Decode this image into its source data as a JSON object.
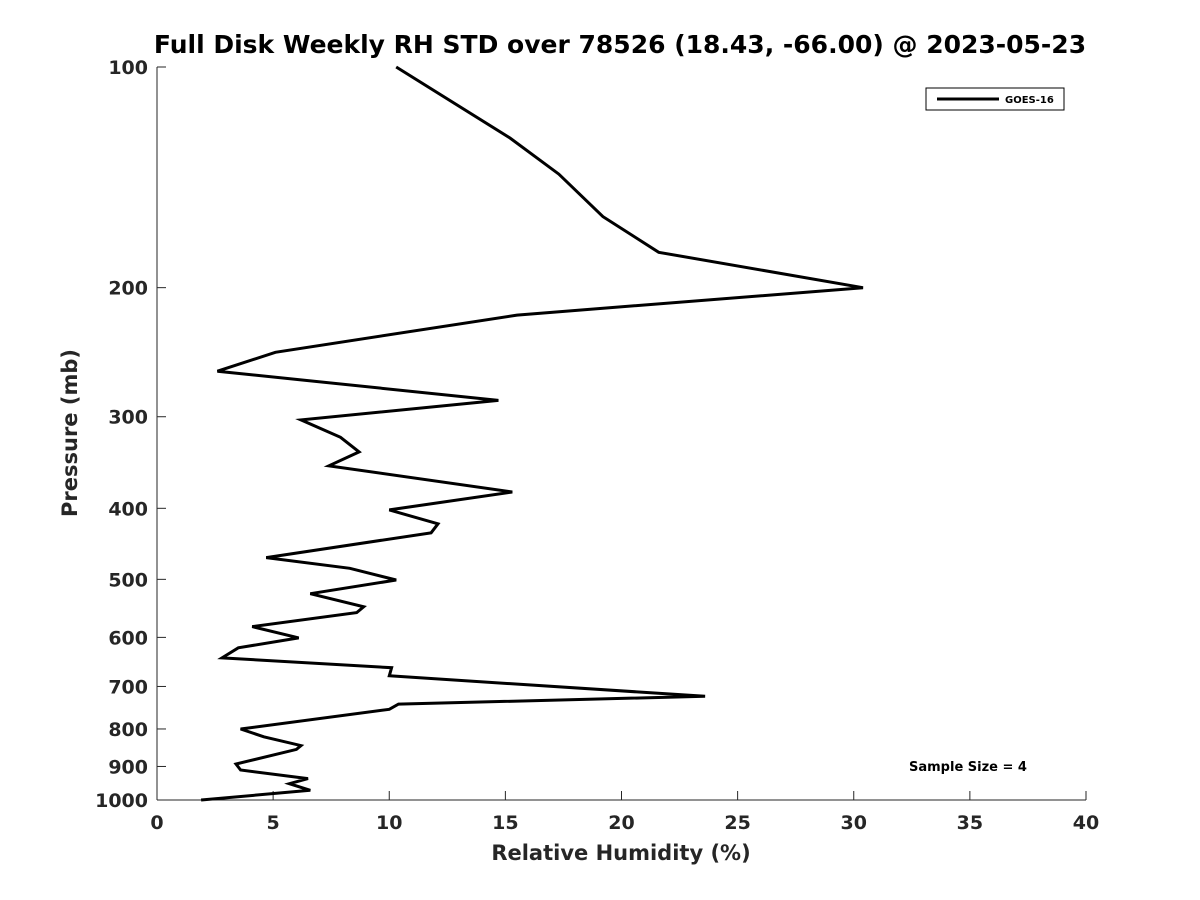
{
  "chart_data": {
    "type": "line",
    "title": "Full Disk Weekly RH STD over 78526 (18.43, -66.00) @ 2023-05-23",
    "xlabel": "Relative Humidity (%)",
    "ylabel": "Pressure (mb)",
    "xlim": [
      0,
      40
    ],
    "ylim": [
      100,
      1000
    ],
    "y_scale": "log",
    "y_reversed": true,
    "x_ticks": [
      0,
      5,
      10,
      15,
      20,
      25,
      30,
      35,
      40
    ],
    "y_ticks": [
      100,
      200,
      300,
      400,
      500,
      600,
      700,
      800,
      900,
      1000
    ],
    "grid": false,
    "legend_position": "top-right",
    "annotation": "Sample Size = 4",
    "series": [
      {
        "name": "GOES-16",
        "color": "#000000",
        "points": [
          [
            10.3,
            100
          ],
          [
            15.2,
            125
          ],
          [
            17.3,
            140
          ],
          [
            19.2,
            160
          ],
          [
            21.6,
            179
          ],
          [
            30.4,
            200
          ],
          [
            15.5,
            218
          ],
          [
            5.1,
            245
          ],
          [
            2.6,
            260
          ],
          [
            14.7,
            285
          ],
          [
            6.2,
            303
          ],
          [
            7.9,
            320
          ],
          [
            8.7,
            335
          ],
          [
            7.4,
            350
          ],
          [
            15.3,
            380
          ],
          [
            10.0,
            402
          ],
          [
            12.1,
            420
          ],
          [
            11.8,
            432
          ],
          [
            4.7,
            467
          ],
          [
            8.3,
            483
          ],
          [
            10.3,
            501
          ],
          [
            6.6,
            523
          ],
          [
            8.9,
            545
          ],
          [
            8.6,
            555
          ],
          [
            4.1,
            580
          ],
          [
            6.1,
            601
          ],
          [
            3.5,
            620
          ],
          [
            2.8,
            640
          ],
          [
            10.1,
            660
          ],
          [
            10.0,
            677
          ],
          [
            23.6,
            722
          ],
          [
            10.4,
            740
          ],
          [
            10.0,
            752
          ],
          [
            3.6,
            800
          ],
          [
            4.6,
            820
          ],
          [
            6.2,
            843
          ],
          [
            6.0,
            853
          ],
          [
            3.4,
            893
          ],
          [
            3.6,
            910
          ],
          [
            6.5,
            935
          ],
          [
            5.7,
            950
          ],
          [
            6.6,
            970
          ],
          [
            1.9,
            1000
          ]
        ]
      }
    ]
  }
}
